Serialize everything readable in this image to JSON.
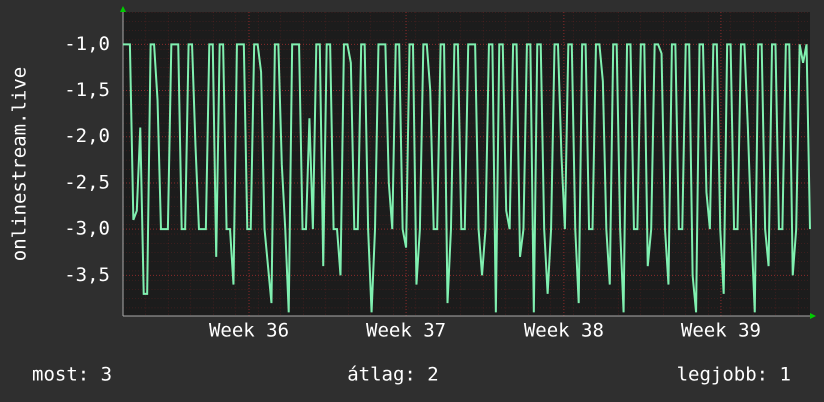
{
  "chart_data": {
    "type": "line",
    "y_label": "onlinestream.live",
    "series": [
      {
        "name": "onlinestream.live",
        "color": "#80f0b0",
        "values": [
          -1,
          -1,
          -1,
          -2.9,
          -2.8,
          -1.9,
          -3.7,
          -3.7,
          -1,
          -1,
          -1.6,
          -3,
          -3,
          -3,
          -1,
          -1,
          -1,
          -3,
          -3,
          -1,
          -1,
          -2.1,
          -3,
          -3,
          -3,
          -1,
          -1,
          -3.3,
          -1,
          -1,
          -3,
          -3,
          -3.6,
          -1,
          -1,
          -1,
          -3,
          -3,
          -1,
          -1,
          -1.3,
          -3,
          -3.4,
          -3.8,
          -1,
          -1,
          -2.3,
          -3,
          -3.9,
          -1,
          -1,
          -1,
          -3,
          -3,
          -1.8,
          -3,
          -1,
          -1,
          -3.4,
          -1,
          -1,
          -3,
          -3,
          -3.5,
          -1,
          -1,
          -1.2,
          -3,
          -3,
          -1,
          -1,
          -3,
          -3.9,
          -3,
          -1,
          -1,
          -1,
          -2.5,
          -3,
          -1,
          -1,
          -3,
          -3.2,
          -1,
          -1,
          -3.6,
          -3,
          -1,
          -1,
          -1.5,
          -3,
          -3,
          -1,
          -1,
          -3.8,
          -3,
          -1,
          -1,
          -3,
          -3,
          -1,
          -1,
          -1,
          -3,
          -3.5,
          -3,
          -1,
          -1,
          -3.9,
          -1,
          -1,
          -2.8,
          -3,
          -1,
          -1,
          -3.3,
          -3,
          -1,
          -1,
          -3.9,
          -1,
          -1,
          -3,
          -3.7,
          -3,
          -1,
          -1,
          -2.2,
          -3,
          -1,
          -1,
          -3,
          -3.8,
          -1,
          -1,
          -3,
          -3,
          -1,
          -1,
          -1.4,
          -3,
          -3.6,
          -1,
          -1,
          -3,
          -3.9,
          -1,
          -1,
          -3,
          -3,
          -1,
          -1,
          -3.4,
          -3,
          -1,
          -1,
          -1.1,
          -3,
          -3.6,
          -1,
          -1,
          -3,
          -3,
          -1,
          -1,
          -3.5,
          -3.9,
          -1,
          -1,
          -2.6,
          -3,
          -1,
          -1,
          -3,
          -3.7,
          -1,
          -1,
          -3,
          -3,
          -1,
          -1,
          -1.9,
          -3,
          -3.9,
          -1,
          -1,
          -3,
          -3.4,
          -1,
          -1,
          -3,
          -3,
          -1,
          -1,
          -3.5,
          -3,
          -1,
          -1.2,
          -1,
          -3
        ]
      }
    ],
    "xlim": [
      0,
      199
    ],
    "xticks": [
      {
        "value": 36.5,
        "label": "Week 36"
      },
      {
        "value": 82,
        "label": "Week 37"
      },
      {
        "value": 127.7,
        "label": "Week 38"
      },
      {
        "value": 173.2,
        "label": "Week 39"
      }
    ],
    "ylim": [
      -3.94,
      -0.65
    ],
    "yticks": [
      {
        "value": -1,
        "label": "-1,0"
      },
      {
        "value": -1.5,
        "label": "-1,5"
      },
      {
        "value": -2,
        "label": "-2,0"
      },
      {
        "value": -2.5,
        "label": "-2,5"
      },
      {
        "value": -3,
        "label": "-3,0"
      },
      {
        "value": -3.5,
        "label": "-3,5"
      }
    ],
    "grid": true,
    "footer": [
      "most: 3",
      "átlag: 2",
      "legjobb: 1"
    ]
  }
}
